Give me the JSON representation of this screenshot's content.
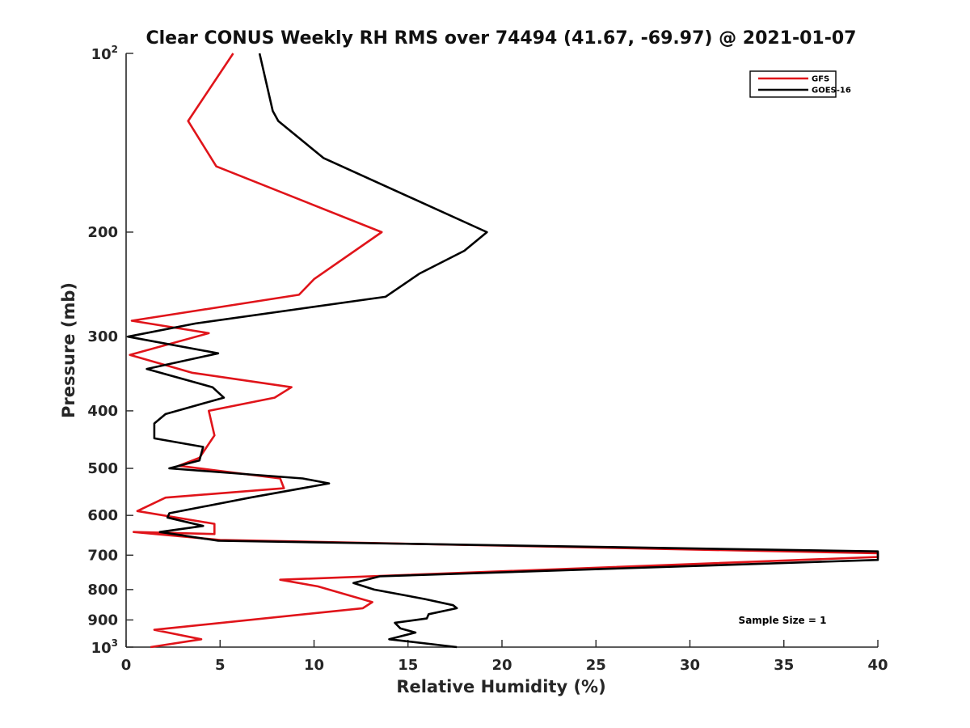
{
  "chart_data": {
    "type": "line",
    "title": "Clear CONUS Weekly RH RMS over 74494 (41.67, -69.97) @ 2021-01-07",
    "xlabel": "Relative Humidity (%)",
    "ylabel": "Pressure (mb)",
    "xlim": [
      0,
      40
    ],
    "ylim": [
      100,
      1000
    ],
    "yscale": "log",
    "y_reversed": true,
    "xticks": [
      0,
      5,
      10,
      15,
      20,
      25,
      30,
      35,
      40
    ],
    "xtick_labels": [
      "0",
      "5",
      "10",
      "15",
      "20",
      "25",
      "30",
      "35",
      "40"
    ],
    "yticks": [
      {
        "value": 100,
        "base": "10",
        "exp": "2"
      },
      {
        "value": 200,
        "label": "200"
      },
      {
        "value": 300,
        "label": "300"
      },
      {
        "value": 400,
        "label": "400"
      },
      {
        "value": 500,
        "label": "500"
      },
      {
        "value": 600,
        "label": "600"
      },
      {
        "value": 700,
        "label": "700"
      },
      {
        "value": 800,
        "label": "800"
      },
      {
        "value": 900,
        "label": "900"
      },
      {
        "value": 1000,
        "base": "10",
        "exp": "3"
      }
    ],
    "grid": false,
    "legend_position": "top-right",
    "annotation": "Sample Size = 1",
    "series": [
      {
        "name": "GFS",
        "color": "#e0141a",
        "x": [
          5.7,
          3.3,
          4.8,
          13.6,
          10.0,
          9.2,
          0.3,
          4.4,
          0.2,
          3.5,
          8.8,
          7.9,
          4.4,
          4.7,
          3.9,
          2.8,
          8.2,
          8.4,
          2.1,
          0.6,
          4.7,
          4.7,
          0.4,
          5.0,
          40.0,
          40.0,
          8.2,
          10.2,
          13.1,
          12.6,
          1.5,
          4.0,
          1.3
        ],
        "y": [
          100,
          130,
          155,
          200,
          240,
          255,
          282,
          296,
          322,
          345,
          365,
          380,
          400,
          440,
          480,
          495,
          520,
          540,
          560,
          590,
          620,
          645,
          640,
          660,
          695,
          705,
          770,
          790,
          840,
          860,
          935,
          970,
          1000
        ]
      },
      {
        "name": "GOES-16",
        "color": "#000000",
        "x": [
          7.1,
          7.8,
          8.1,
          10.5,
          19.2,
          18.0,
          15.6,
          13.8,
          3.7,
          0.1,
          4.9,
          1.1,
          4.6,
          5.2,
          2.1,
          1.5,
          1.5,
          4.1,
          3.9,
          2.3,
          9.4,
          10.8,
          6.6,
          2.3,
          2.2,
          4.1,
          1.8,
          4.9,
          40.0,
          40.0,
          13.5,
          12.1,
          13.2,
          15.9,
          17.4,
          17.6,
          16.1,
          16.0,
          14.3,
          14.6,
          15.4,
          14.0,
          17.6
        ],
        "y": [
          100,
          125,
          130,
          150,
          200,
          215,
          235,
          257,
          285,
          300,
          320,
          340,
          365,
          380,
          405,
          420,
          445,
          460,
          485,
          500,
          520,
          530,
          560,
          595,
          605,
          625,
          640,
          662,
          690,
          713,
          760,
          780,
          800,
          830,
          850,
          860,
          880,
          895,
          910,
          930,
          945,
          970,
          1000
        ]
      }
    ]
  }
}
